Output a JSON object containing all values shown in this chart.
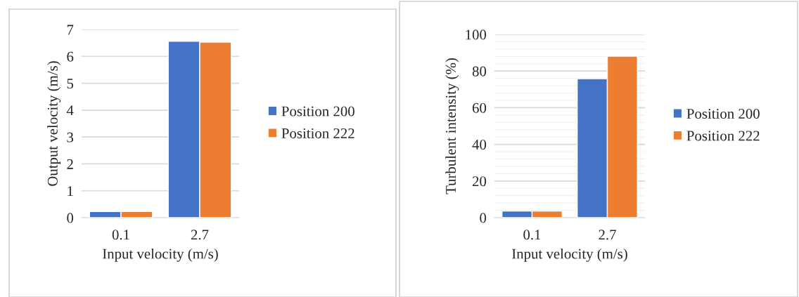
{
  "chart_data": [
    {
      "type": "bar",
      "categories": [
        "0.1",
        "2.7"
      ],
      "xlabel": "Input velocity (m/s)",
      "ylabel": "Output velocity (m/s)",
      "series": [
        {
          "name": "Position 200",
          "color": "#4472c4",
          "values": [
            0.23,
            6.56
          ]
        },
        {
          "name": "Position 222",
          "color": "#ed7d31",
          "values": [
            0.23,
            6.53
          ]
        }
      ],
      "ylim": [
        0,
        7
      ],
      "yticks": [
        0,
        1,
        2,
        3,
        4,
        5,
        6,
        7
      ],
      "grid": "y",
      "legend": "right"
    },
    {
      "type": "bar",
      "categories": [
        "0.1",
        "2.7"
      ],
      "xlabel": "Input velocity (m/s)",
      "ylabel": "Turbulent intensity (%)",
      "series": [
        {
          "name": "Position 200",
          "color": "#4472c4",
          "values": [
            3.6,
            75.8
          ]
        },
        {
          "name": "Position 222",
          "color": "#ed7d31",
          "values": [
            3.6,
            88.1
          ]
        }
      ],
      "ylim": [
        0,
        100
      ],
      "yticks": [
        0,
        {
          "value": 4,
          "label": null
        },
        {
          "value": 8,
          "label": null
        },
        {
          "value": 12,
          "label": null
        },
        {
          "value": 16,
          "label": null
        },
        20,
        {
          "value": 24,
          "label": null
        },
        {
          "value": 28,
          "label": null
        },
        {
          "value": 32,
          "label": null
        },
        {
          "value": 36,
          "label": null
        },
        40,
        {
          "value": 44,
          "label": null
        },
        {
          "value": 48,
          "label": null
        },
        {
          "value": 52,
          "label": null
        },
        {
          "value": 56,
          "label": null
        },
        60,
        {
          "value": 64,
          "label": null
        },
        {
          "value": 68,
          "label": null
        },
        {
          "value": 72,
          "label": null
        },
        {
          "value": 76,
          "label": null
        },
        80,
        {
          "value": 84,
          "label": null
        },
        {
          "value": 88,
          "label": null
        },
        {
          "value": 92,
          "label": null
        },
        {
          "value": 96,
          "label": null
        },
        100
      ],
      "grid": "y",
      "legend": "right"
    }
  ]
}
